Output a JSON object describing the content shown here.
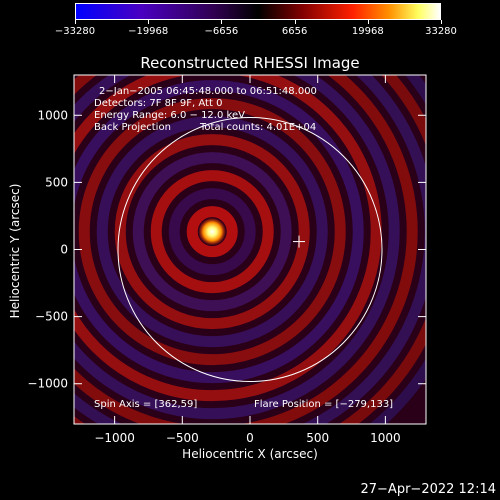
{
  "chart_data": {
    "type": "heatmap",
    "title": "Reconstructed RHESSI Image",
    "xlabel": "Heliocentric X (arcsec)",
    "ylabel": "Heliocentric Y (arcsec)",
    "xlim": [
      -1300,
      1300
    ],
    "ylim": [
      -1300,
      1300
    ],
    "xticks": [
      -1000,
      -500,
      0,
      500,
      1000
    ],
    "yticks": [
      -1000,
      -500,
      0,
      500,
      1000
    ],
    "xtick_labels": [
      "−1000",
      "−500",
      "0",
      "500",
      "1000"
    ],
    "ytick_labels": [
      "−1000",
      "−500",
      "0",
      "500",
      "1000"
    ],
    "colorbar": {
      "min": -33280,
      "max": 33280,
      "tick_values": [
        -33280,
        -19968,
        -6656,
        6656,
        19968,
        33280
      ],
      "tick_labels": [
        "−33280",
        "−19968",
        "−6656",
        "6656",
        "19968",
        "33280"
      ],
      "colors": [
        "#0000ff",
        "#4a00c0",
        "#300050",
        "#000000",
        "#800000",
        "#ff2000",
        "#ff9000",
        "#ffff60",
        "#ffffff"
      ]
    },
    "annotations": {
      "time": "2−Jan−2005 06:45:48.000 to 06:51:48.000",
      "detectors": "Detectors: 7F 8F 9F, Att 0",
      "energy": "Energy Range: 6.0 − 12.0 keV",
      "method": "Back Projection",
      "counts": "Total counts: 4.01E+04",
      "spin_axis": "Spin Axis = [362,59]",
      "flare_position": "Flare Position = [−279,133]"
    },
    "solar_limb_radius": 975,
    "source_center": [
      -279,
      133
    ],
    "spin_axis": [
      362,
      59
    ],
    "grid": false
  },
  "footer": {
    "timestamp": "27−Apr−2022 12:14"
  }
}
